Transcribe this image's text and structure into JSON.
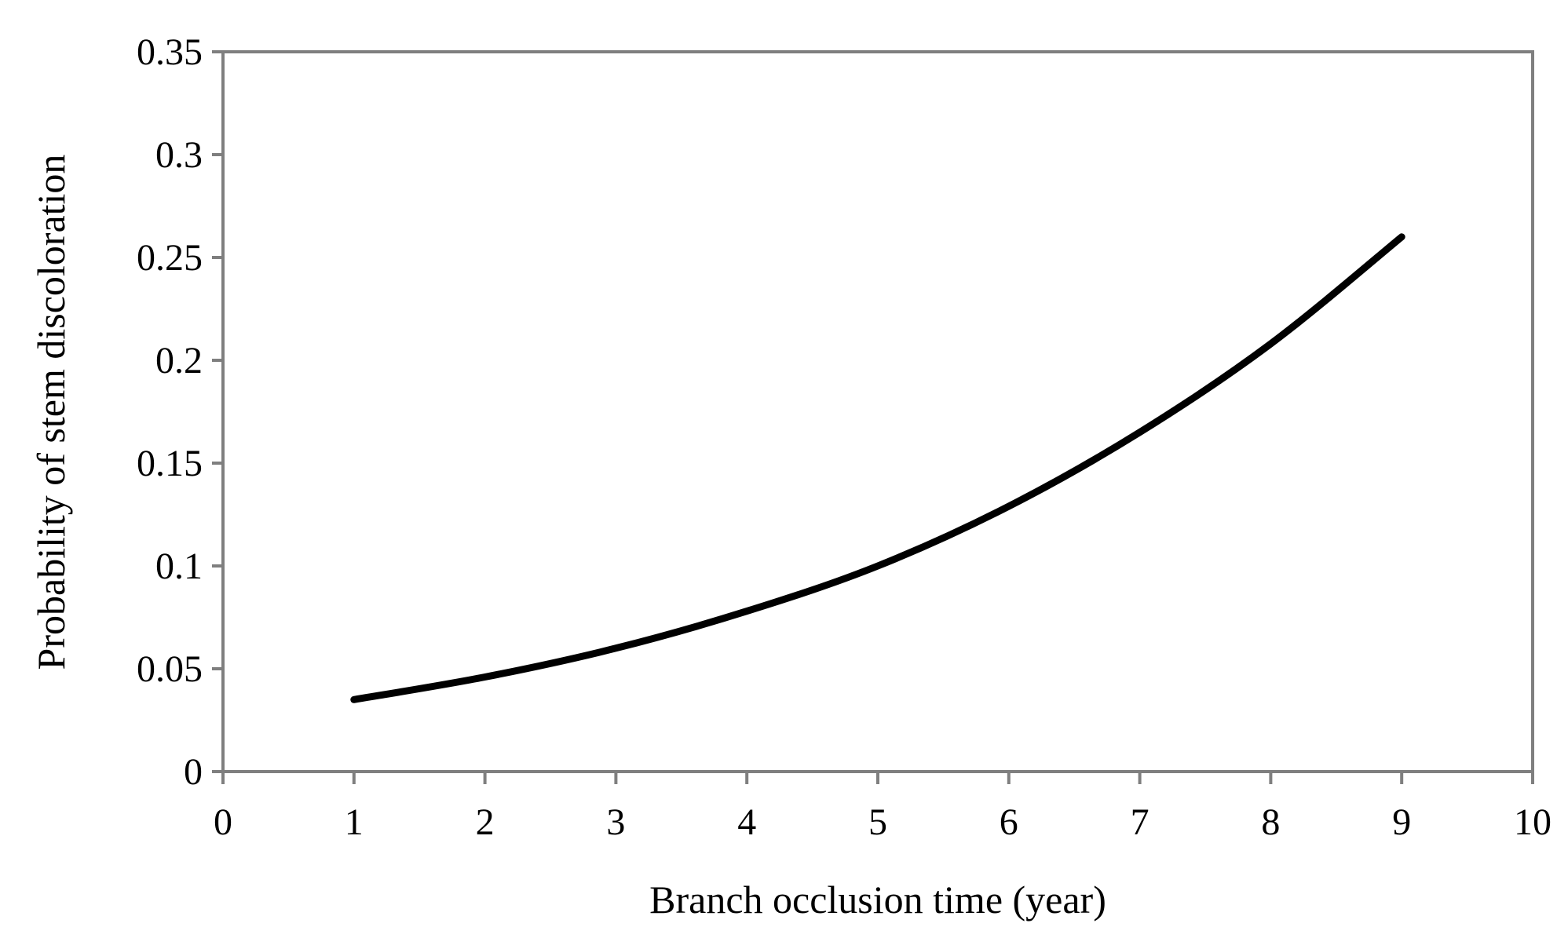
{
  "chart_data": {
    "type": "line",
    "title": "",
    "xlabel": "Branch occlusion time (year)",
    "ylabel": "Probability of stem discoloration",
    "xlim": [
      0,
      10
    ],
    "ylim": [
      0,
      0.35
    ],
    "x_ticks": [
      "0",
      "1",
      "2",
      "3",
      "4",
      "5",
      "6",
      "7",
      "8",
      "9",
      "10"
    ],
    "y_ticks": [
      "0",
      "0.05",
      "0.1",
      "0.15",
      "0.2",
      "0.25",
      "0.3",
      "0.35"
    ],
    "grid": false,
    "legend": "none",
    "line_color": "#000000",
    "series": [
      {
        "x": [
          1,
          2,
          3,
          4,
          5,
          6,
          7,
          8,
          9
        ],
        "y": [
          0.035,
          0.046,
          0.06,
          0.078,
          0.1,
          0.129,
          0.165,
          0.208,
          0.26
        ]
      }
    ]
  }
}
